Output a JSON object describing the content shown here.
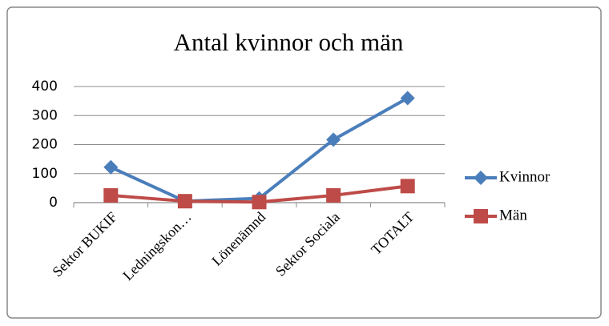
{
  "chart_data": {
    "type": "line",
    "title": "Antal kvinnor och män",
    "categories": [
      "Sektor BUKIF",
      "Ledningskon…",
      "Lönenämnd",
      "Sektor Sociala",
      "TOTALT"
    ],
    "series": [
      {
        "name": "Kvinnor",
        "color": "#4a7ebb",
        "values": [
          122,
          5,
          15,
          217,
          360
        ]
      },
      {
        "name": "Män",
        "color": "#be4b48",
        "values": [
          25,
          5,
          2,
          25,
          57
        ]
      }
    ],
    "ylim": [
      0,
      400
    ],
    "yticks": [
      0,
      100,
      200,
      300,
      400
    ],
    "grid": true,
    "legend": "right"
  }
}
